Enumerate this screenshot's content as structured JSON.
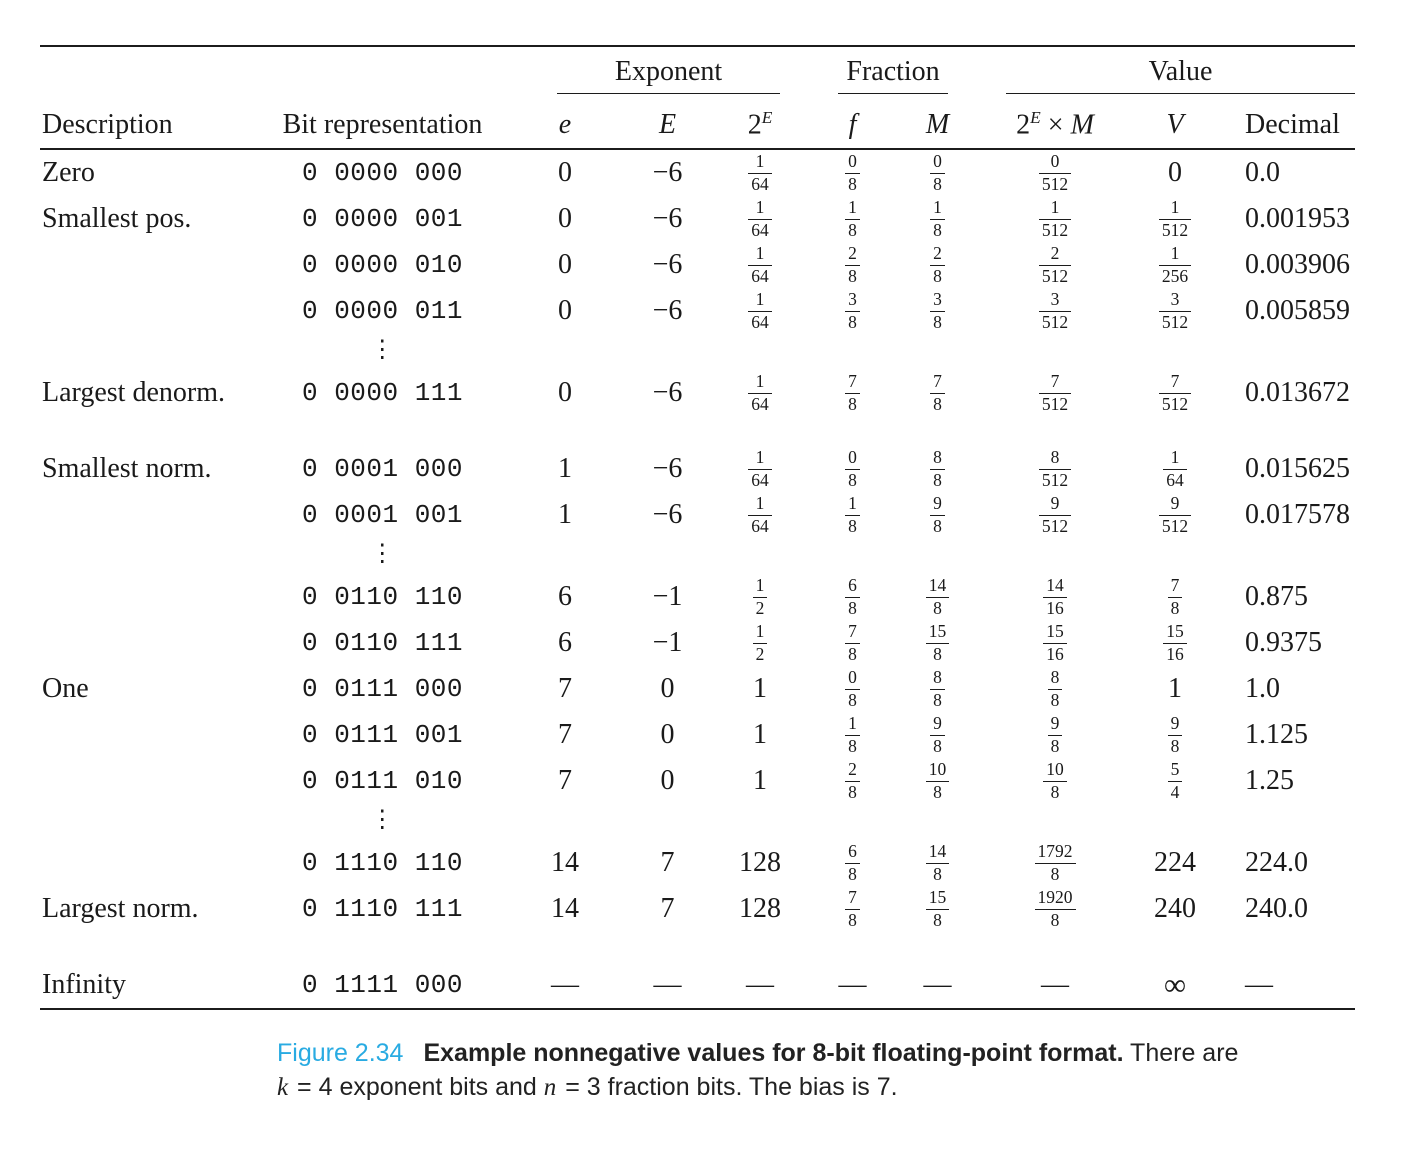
{
  "accent_color": "#29abe2",
  "table": {
    "group_headers": [
      {
        "key": "none",
        "label": "",
        "span": 2,
        "rule": false
      },
      {
        "key": "exponent",
        "label": "Exponent",
        "span": 3,
        "rule": true
      },
      {
        "key": "fraction",
        "label": "Fraction",
        "span": 2,
        "rule": true
      },
      {
        "key": "value",
        "label": "Value",
        "span": 3,
        "rule": true
      }
    ],
    "columns": [
      {
        "key": "desc",
        "label": "Description",
        "math": false
      },
      {
        "key": "bits",
        "label": "Bit representation",
        "math": false
      },
      {
        "key": "e",
        "label": "e",
        "math": true
      },
      {
        "key": "E",
        "label": "E",
        "math": true
      },
      {
        "key": "pow2E",
        "label": "2^E",
        "math": true
      },
      {
        "key": "f",
        "label": "f",
        "math": true
      },
      {
        "key": "M",
        "label": "M",
        "math": true
      },
      {
        "key": "prod",
        "label": "2^E × M",
        "math": true
      },
      {
        "key": "V",
        "label": "V",
        "math": true
      },
      {
        "key": "dec",
        "label": "Decimal",
        "math": false
      }
    ],
    "rows": [
      {
        "cells": [
          "Zero",
          "0 0000 000",
          "0",
          "−6",
          "1/64",
          "0/8",
          "0/8",
          "0/512",
          "0",
          "0.0"
        ]
      },
      {
        "cells": [
          "Smallest pos.",
          "0 0000 001",
          "0",
          "−6",
          "1/64",
          "1/8",
          "1/8",
          "1/512",
          "1/512",
          "0.001953"
        ]
      },
      {
        "cells": [
          "",
          "0 0000 010",
          "0",
          "−6",
          "1/64",
          "2/8",
          "2/8",
          "2/512",
          "1/256",
          "0.003906"
        ]
      },
      {
        "cells": [
          "",
          "0 0000 011",
          "0",
          "−6",
          "1/64",
          "3/8",
          "3/8",
          "3/512",
          "3/512",
          "0.005859"
        ]
      },
      {
        "type": "dots",
        "symbol": "⋮"
      },
      {
        "cells": [
          "Largest denorm.",
          "0 0000 111",
          "0",
          "−6",
          "1/64",
          "7/8",
          "7/8",
          "7/512",
          "7/512",
          "0.013672"
        ]
      },
      {
        "gap_before": true,
        "cells": [
          "Smallest norm.",
          "0 0001 000",
          "1",
          "−6",
          "1/64",
          "0/8",
          "8/8",
          "8/512",
          "1/64",
          "0.015625"
        ]
      },
      {
        "cells": [
          "",
          "0 0001 001",
          "1",
          "−6",
          "1/64",
          "1/8",
          "9/8",
          "9/512",
          "9/512",
          "0.017578"
        ]
      },
      {
        "type": "dots",
        "symbol": "⋮"
      },
      {
        "cells": [
          "",
          "0 0110 110",
          "6",
          "−1",
          "1/2",
          "6/8",
          "14/8",
          "14/16",
          "7/8",
          "0.875"
        ]
      },
      {
        "cells": [
          "",
          "0 0110 111",
          "6",
          "−1",
          "1/2",
          "7/8",
          "15/8",
          "15/16",
          "15/16",
          "0.9375"
        ]
      },
      {
        "cells": [
          "One",
          "0 0111 000",
          "7",
          "0",
          "1",
          "0/8",
          "8/8",
          "8/8",
          "1",
          "1.0"
        ]
      },
      {
        "cells": [
          "",
          "0 0111 001",
          "7",
          "0",
          "1",
          "1/8",
          "9/8",
          "9/8",
          "9/8",
          "1.125"
        ]
      },
      {
        "cells": [
          "",
          "0 0111 010",
          "7",
          "0",
          "1",
          "2/8",
          "10/8",
          "10/8",
          "5/4",
          "1.25"
        ]
      },
      {
        "type": "dots",
        "symbol": "⋮"
      },
      {
        "cells": [
          "",
          "0 1110 110",
          "14",
          "7",
          "128",
          "6/8",
          "14/8",
          "1792/8",
          "224",
          "224.0"
        ]
      },
      {
        "cells": [
          "Largest norm.",
          "0 1110 111",
          "14",
          "7",
          "128",
          "7/8",
          "15/8",
          "1920/8",
          "240",
          "240.0"
        ]
      },
      {
        "gap_before": true,
        "cells": [
          "Infinity",
          "0 1111 000",
          "—",
          "—",
          "—",
          "—",
          "—",
          "—",
          "∞",
          "—"
        ]
      }
    ]
  },
  "caption": {
    "label": "Figure 2.34",
    "title": "Example nonnegative values for 8-bit floating-point format.",
    "line1_rest": "There are",
    "line2_parts": [
      {
        "i": "k"
      },
      {
        "t": " = 4 exponent bits and "
      },
      {
        "i": "n"
      },
      {
        "t": " = 3 fraction bits. The bias is 7."
      }
    ]
  }
}
